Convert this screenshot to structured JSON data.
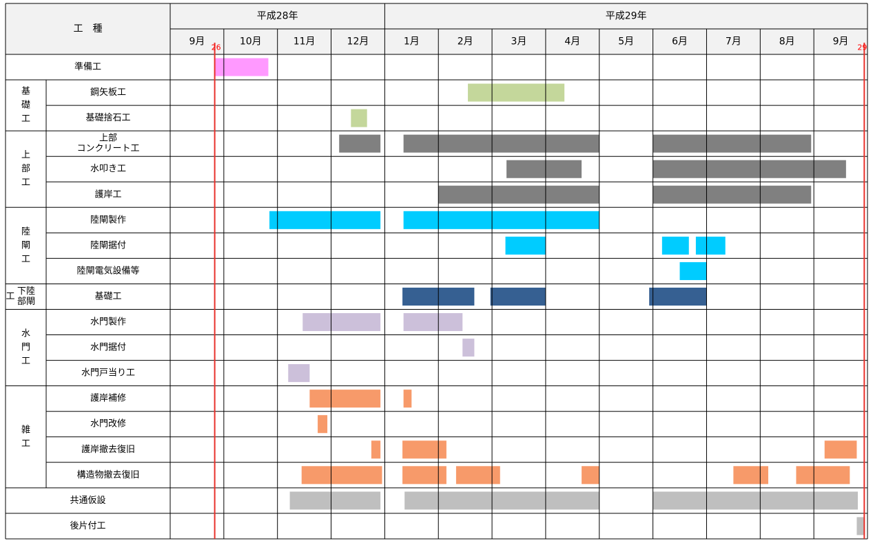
{
  "chart_data": {
    "type": "gantt",
    "header": {
      "work_type": "工　種",
      "years": [
        {
          "label": "平成28年",
          "months": 4
        },
        {
          "label": "平成29年",
          "months": 9
        }
      ],
      "months": [
        "9月",
        "10月",
        "11月",
        "12月",
        "1月",
        "2月",
        "3月",
        "4月",
        "5月",
        "6月",
        "7月",
        "8月",
        "9月"
      ]
    },
    "x_unit": "month index from start of 平成28年9月 (0 = 9/1, 1 = 10/1, ...)",
    "markers": [
      {
        "label": "26",
        "x": 0.83,
        "color": "#e8302a"
      },
      {
        "label": "29",
        "x": 12.94,
        "color": "#e8302a"
      }
    ],
    "colors": {
      "pink": "#ff99ff",
      "green": "#c4d79b",
      "gray": "#808080",
      "cyan": "#00ccff",
      "navy": "#366092",
      "lavender": "#ccc0da",
      "orange": "#fabf8f",
      "salmon": "#f79a6a",
      "lightgray": "#bfbfbf"
    },
    "groups": [
      {
        "label": "",
        "rows": 1
      },
      {
        "label": "基\n礎\n工",
        "rows": 2
      },
      {
        "label": "上\n部\n工",
        "rows": 3
      },
      {
        "label": "陸\n閘\n工",
        "rows": 3
      },
      {
        "label": "陸閘\n下部工",
        "rows": 1,
        "small": true
      },
      {
        "label": "水\n門\n工",
        "rows": 3
      },
      {
        "label": "雑\n工",
        "rows": 4
      },
      {
        "label": "",
        "rows": 1
      },
      {
        "label": "",
        "rows": 1
      }
    ],
    "rows": [
      {
        "name": "準備工",
        "color": "#ff99ff",
        "bars": [
          [
            0.84,
            1.83
          ]
        ]
      },
      {
        "name": "鋼矢板工",
        "color": "#c4d79b",
        "bars": [
          [
            5.55,
            7.35
          ]
        ]
      },
      {
        "name": "基礎捨石工",
        "color": "#c4d79b",
        "bars": [
          [
            3.37,
            3.67
          ]
        ]
      },
      {
        "name": "上部\nコンクリート工",
        "color": "#808080",
        "bars": [
          [
            3.15,
            3.92
          ],
          [
            4.35,
            8.0
          ],
          [
            9.0,
            11.95
          ]
        ]
      },
      {
        "name": "水叩き工",
        "color": "#808080",
        "bars": [
          [
            6.27,
            7.67
          ],
          [
            9.0,
            12.6
          ]
        ]
      },
      {
        "name": "護岸工",
        "color": "#808080",
        "bars": [
          [
            5.0,
            8.0
          ],
          [
            9.0,
            11.95
          ]
        ]
      },
      {
        "name": "陸閘製作",
        "color": "#00ccff",
        "bars": [
          [
            1.85,
            3.92
          ],
          [
            4.35,
            8.0
          ]
        ]
      },
      {
        "name": "陸閘据付",
        "color": "#00ccff",
        "bars": [
          [
            6.25,
            7.0
          ],
          [
            9.17,
            9.67
          ],
          [
            9.8,
            10.35
          ]
        ]
      },
      {
        "name": "陸閘電気設備等",
        "color": "#00ccff",
        "bars": [
          [
            9.5,
            10.0
          ]
        ]
      },
      {
        "name": "基礎工",
        "color": "#366092",
        "bars": [
          [
            4.33,
            5.67
          ],
          [
            5.97,
            7.0
          ],
          [
            8.93,
            10.0
          ]
        ]
      },
      {
        "name": "水門製作",
        "color": "#ccc0da",
        "bars": [
          [
            2.47,
            3.92
          ],
          [
            4.35,
            5.45
          ]
        ]
      },
      {
        "name": "水門据付",
        "color": "#ccc0da",
        "bars": [
          [
            5.45,
            5.67
          ]
        ]
      },
      {
        "name": "水門戸当り工",
        "color": "#ccc0da",
        "bars": [
          [
            2.2,
            2.6
          ]
        ]
      },
      {
        "name": "護岸補修",
        "color": "#f79a6a",
        "bars": [
          [
            2.6,
            3.92
          ],
          [
            4.35,
            4.5
          ]
        ]
      },
      {
        "name": "水門改修",
        "color": "#f79a6a",
        "bars": [
          [
            2.75,
            2.93
          ]
        ]
      },
      {
        "name": "護岸撤去復旧",
        "color": "#f79a6a",
        "bars": [
          [
            3.75,
            3.92
          ],
          [
            4.33,
            5.15
          ],
          [
            12.2,
            12.8
          ]
        ]
      },
      {
        "name": "構造物撤去復旧",
        "color": "#f79a6a",
        "bars": [
          [
            2.45,
            3.95
          ],
          [
            4.33,
            5.15
          ],
          [
            5.33,
            6.15
          ],
          [
            7.67,
            8.0
          ],
          [
            10.5,
            11.15
          ],
          [
            11.67,
            12.67
          ]
        ]
      },
      {
        "name": "共通仮設",
        "color": "#bfbfbf",
        "bars": [
          [
            2.23,
            3.92
          ],
          [
            4.37,
            8.0
          ],
          [
            9.0,
            12.82
          ]
        ]
      },
      {
        "name": "後片付工",
        "color": "#bfbfbf",
        "bars": [
          [
            12.8,
            12.95
          ]
        ]
      }
    ]
  }
}
